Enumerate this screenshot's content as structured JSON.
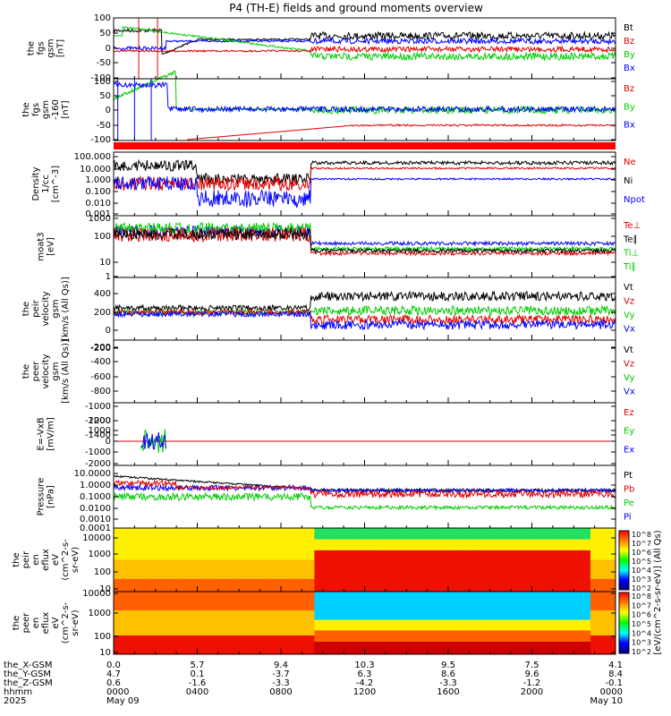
{
  "title": "P4 (TH-E) fields and ground moments overview",
  "colors": {
    "black": "#000000",
    "red": "#e00000",
    "green": "#00cc00",
    "blue": "#0000ff",
    "bar": "#ff0000"
  },
  "chart_data": [
    {
      "type": "line",
      "ylabel": [
        "the",
        "fgs",
        "gsm",
        "[nT]"
      ],
      "yticks": [
        "100",
        "50",
        "0",
        "-50",
        "-100"
      ],
      "ylim": [
        -100,
        100
      ],
      "legend": [
        {
          "name": "Bt",
          "color": "black"
        },
        {
          "name": "Bz",
          "color": "red"
        },
        {
          "name": "By",
          "color": "green"
        },
        {
          "name": "Bx",
          "color": "blue"
        }
      ]
    },
    {
      "type": "line",
      "ylabel": [
        "the",
        "fgs",
        "gsm",
        "-160",
        "[nT]"
      ],
      "yticks": [
        "100",
        "50",
        "0",
        "-50",
        "-100"
      ],
      "ylim": [
        -130,
        100
      ],
      "legend": [
        {
          "name": "Bz",
          "color": "red"
        },
        {
          "name": "By",
          "color": "green"
        },
        {
          "name": "Bx",
          "color": "blue"
        }
      ]
    },
    {
      "type": "line",
      "scale": "log",
      "ylabel": [
        "Density",
        "1/cc",
        "[cm^-3]"
      ],
      "yticks": [
        "100.000",
        "10.000",
        "1.000",
        "0.100",
        "0.010",
        "0.001"
      ],
      "legend": [
        {
          "name": "Ne",
          "color": "red"
        },
        {
          "name": "Ni",
          "color": "black"
        },
        {
          "name": "Npot",
          "color": "blue"
        }
      ]
    },
    {
      "type": "line",
      "scale": "log",
      "ylabel": [
        "moat3",
        "[eV]"
      ],
      "yticks": [
        "1000",
        "100",
        "10",
        "1"
      ],
      "legend": [
        {
          "name": "Te⊥",
          "color": "red"
        },
        {
          "name": "Te∥",
          "color": "black"
        },
        {
          "name": "Ti⊥",
          "color": "green"
        },
        {
          "name": "Ti∥",
          "color": "green"
        }
      ]
    },
    {
      "type": "line",
      "ylabel": [
        "the",
        "peir",
        "velocity",
        "gsm",
        "[km/s (All Qs)]"
      ],
      "yticks": [
        "400",
        "200",
        "0",
        "-200"
      ],
      "ylim": [
        -300,
        480
      ],
      "legend": [
        {
          "name": "Vt",
          "color": "black"
        },
        {
          "name": "Vz",
          "color": "red"
        },
        {
          "name": "Vy",
          "color": "green"
        },
        {
          "name": "Vx",
          "color": "blue"
        }
      ]
    },
    {
      "type": "line",
      "ylabel": [
        "the",
        "peer",
        "velocity",
        "gsm",
        "[km/s (All Qs)]"
      ],
      "yticks": [
        "-200",
        "-400",
        "-600",
        "-800",
        "-1000",
        "-1200",
        "-1400"
      ],
      "ylim": [
        -1450,
        -100
      ],
      "legend": [
        {
          "name": "Vt",
          "color": "black"
        },
        {
          "name": "Vz",
          "color": "red"
        },
        {
          "name": "Vy",
          "color": "green"
        },
        {
          "name": "Vx",
          "color": "blue"
        }
      ]
    },
    {
      "type": "line",
      "ylabel": [
        "E=-VxB",
        "[mV/m]"
      ],
      "yticks": [
        "2000",
        "1000",
        "0",
        "-1000",
        "-2000"
      ],
      "ylim": [
        -2000,
        2200
      ],
      "legend": [
        {
          "name": "Ez",
          "color": "red"
        },
        {
          "name": "Ey",
          "color": "green"
        },
        {
          "name": "Ex",
          "color": "blue"
        }
      ]
    },
    {
      "type": "line",
      "scale": "log",
      "ylabel": [
        "Pressure",
        "[nPa]"
      ],
      "yticks": [
        "10.0000",
        "1.0000",
        "0.1000",
        "0.0100",
        "0.0010",
        "0.0001"
      ],
      "legend": [
        {
          "name": "Pt",
          "color": "black"
        },
        {
          "name": "Pb",
          "color": "red"
        },
        {
          "name": "Pe",
          "color": "green"
        },
        {
          "name": "Pi",
          "color": "blue"
        }
      ]
    },
    {
      "type": "heatmap",
      "ylabel": [
        "the",
        "peir",
        "en",
        "eflux",
        "eV",
        "(cm^2-s-",
        "sr-eV)"
      ],
      "yticks": [
        "10000",
        "1000",
        "100",
        "10"
      ]
    },
    {
      "type": "heatmap",
      "ylabel": [
        "the",
        "peer",
        "en",
        "eflux",
        "eV",
        "(cm^2-s-",
        "sr-eV)"
      ],
      "yticks": [
        "10000",
        "1000",
        "100",
        "10"
      ]
    }
  ],
  "colorbar": {
    "label": "[eV/(cm^2-s-sr-eV)] (All Qs)",
    "ticks": [
      "10^8",
      "10^7",
      "10^6",
      "10^5",
      "10^4",
      "10^3",
      "10^2"
    ]
  },
  "xaxis": {
    "row_labels": [
      "the_X-GSM",
      "the_Y-GSM",
      "the_Z-GSM",
      "hhmm",
      "2025"
    ],
    "ticks": [
      {
        "X": "0.0",
        "Y": "4.7",
        "Z": "0.6",
        "hhmm": "0000",
        "date": "May 09"
      },
      {
        "X": "5.7",
        "Y": "0.1",
        "Z": "-1.6",
        "hhmm": "0400",
        "date": ""
      },
      {
        "X": "9.4",
        "Y": "-3.7",
        "Z": "-3.3",
        "hhmm": "0800",
        "date": ""
      },
      {
        "X": "10.3",
        "Y": "6.3",
        "Z": "-4.2",
        "hhmm": "1200",
        "date": ""
      },
      {
        "X": "9.5",
        "Y": "8.6",
        "Z": "-3.3",
        "hhmm": "1600",
        "date": ""
      },
      {
        "X": "7.5",
        "Y": "9.6",
        "Z": "-1.2",
        "hhmm": "2000",
        "date": ""
      },
      {
        "X": "4.1",
        "Y": "8.4",
        "Z": "-0.1",
        "hhmm": "0000",
        "date": "May 10"
      }
    ]
  }
}
